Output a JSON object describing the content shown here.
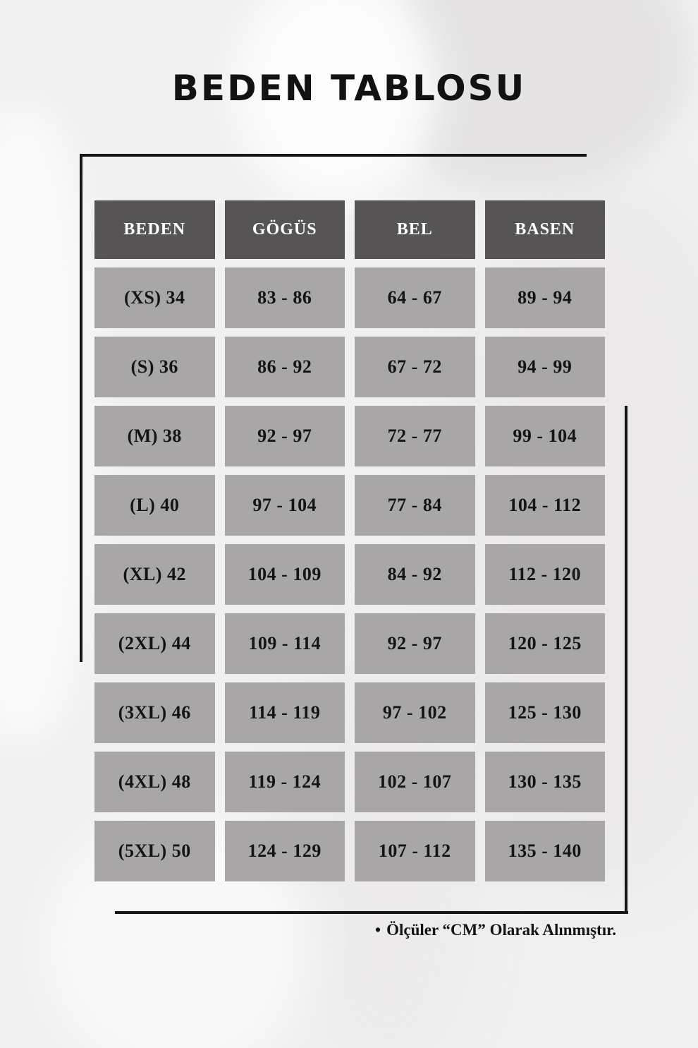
{
  "title": "BEDEN TABLOSU",
  "table": {
    "headers": [
      "BEDEN",
      "GÖGÜS",
      "BEL",
      "BASEN"
    ],
    "rows": [
      [
        "(XS) 34",
        "83 - 86",
        "64 - 67",
        "89 - 94"
      ],
      [
        "(S) 36",
        "86 - 92",
        "67 - 72",
        "94 - 99"
      ],
      [
        "(M) 38",
        "92 - 97",
        "72 - 77",
        "99 - 104"
      ],
      [
        "(L) 40",
        "97 - 104",
        "77 - 84",
        "104 - 112"
      ],
      [
        "(XL) 42",
        "104 - 109",
        "84 - 92",
        "112 - 120"
      ],
      [
        "(2XL) 44",
        "109 - 114",
        "92 - 97",
        "120 - 125"
      ],
      [
        "(3XL) 46",
        "114 - 119",
        "97 - 102",
        "125 - 130"
      ],
      [
        "(4XL) 48",
        "119 - 124",
        "102 - 107",
        "130 - 135"
      ],
      [
        "(5XL) 50",
        "124 - 129",
        "107 - 112",
        "135 - 140"
      ]
    ]
  },
  "footer": {
    "bullet": "•",
    "note": "Ölçüler “CM” Olarak Alınmıştır."
  },
  "colors": {
    "header_bg": "#575455",
    "cell_bg": "#a8a6a7",
    "line": "#161616",
    "page_bg": "#f1f0f0",
    "text": "#141414"
  }
}
